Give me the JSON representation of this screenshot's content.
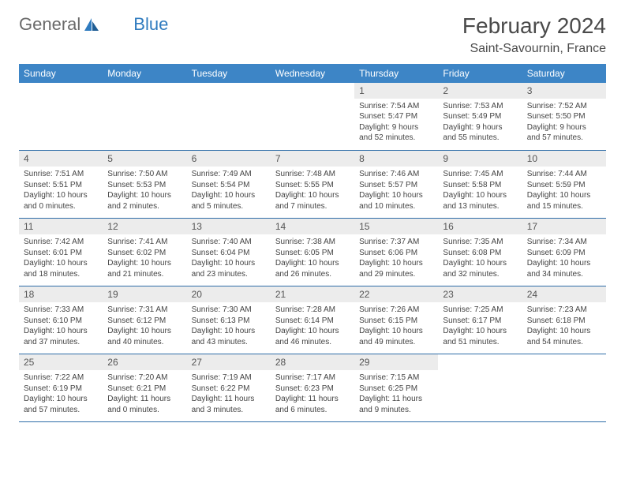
{
  "brand": {
    "part1": "General",
    "part2": "Blue"
  },
  "header": {
    "title": "February 2024",
    "location": "Saint-Savournin, France"
  },
  "columns": [
    "Sunday",
    "Monday",
    "Tuesday",
    "Wednesday",
    "Thursday",
    "Friday",
    "Saturday"
  ],
  "colors": {
    "header_bg": "#3d85c6",
    "header_text": "#ffffff",
    "row_border": "#2f6da8",
    "daynum_bg": "#ececec",
    "logo_gray": "#6a6a6a",
    "logo_blue": "#2f7bbf"
  },
  "weeks": [
    [
      null,
      null,
      null,
      null,
      {
        "n": "1",
        "sr": "7:54 AM",
        "ss": "5:47 PM",
        "dl": "9 hours and 52 minutes."
      },
      {
        "n": "2",
        "sr": "7:53 AM",
        "ss": "5:49 PM",
        "dl": "9 hours and 55 minutes."
      },
      {
        "n": "3",
        "sr": "7:52 AM",
        "ss": "5:50 PM",
        "dl": "9 hours and 57 minutes."
      }
    ],
    [
      {
        "n": "4",
        "sr": "7:51 AM",
        "ss": "5:51 PM",
        "dl": "10 hours and 0 minutes."
      },
      {
        "n": "5",
        "sr": "7:50 AM",
        "ss": "5:53 PM",
        "dl": "10 hours and 2 minutes."
      },
      {
        "n": "6",
        "sr": "7:49 AM",
        "ss": "5:54 PM",
        "dl": "10 hours and 5 minutes."
      },
      {
        "n": "7",
        "sr": "7:48 AM",
        "ss": "5:55 PM",
        "dl": "10 hours and 7 minutes."
      },
      {
        "n": "8",
        "sr": "7:46 AM",
        "ss": "5:57 PM",
        "dl": "10 hours and 10 minutes."
      },
      {
        "n": "9",
        "sr": "7:45 AM",
        "ss": "5:58 PM",
        "dl": "10 hours and 13 minutes."
      },
      {
        "n": "10",
        "sr": "7:44 AM",
        "ss": "5:59 PM",
        "dl": "10 hours and 15 minutes."
      }
    ],
    [
      {
        "n": "11",
        "sr": "7:42 AM",
        "ss": "6:01 PM",
        "dl": "10 hours and 18 minutes."
      },
      {
        "n": "12",
        "sr": "7:41 AM",
        "ss": "6:02 PM",
        "dl": "10 hours and 21 minutes."
      },
      {
        "n": "13",
        "sr": "7:40 AM",
        "ss": "6:04 PM",
        "dl": "10 hours and 23 minutes."
      },
      {
        "n": "14",
        "sr": "7:38 AM",
        "ss": "6:05 PM",
        "dl": "10 hours and 26 minutes."
      },
      {
        "n": "15",
        "sr": "7:37 AM",
        "ss": "6:06 PM",
        "dl": "10 hours and 29 minutes."
      },
      {
        "n": "16",
        "sr": "7:35 AM",
        "ss": "6:08 PM",
        "dl": "10 hours and 32 minutes."
      },
      {
        "n": "17",
        "sr": "7:34 AM",
        "ss": "6:09 PM",
        "dl": "10 hours and 34 minutes."
      }
    ],
    [
      {
        "n": "18",
        "sr": "7:33 AM",
        "ss": "6:10 PM",
        "dl": "10 hours and 37 minutes."
      },
      {
        "n": "19",
        "sr": "7:31 AM",
        "ss": "6:12 PM",
        "dl": "10 hours and 40 minutes."
      },
      {
        "n": "20",
        "sr": "7:30 AM",
        "ss": "6:13 PM",
        "dl": "10 hours and 43 minutes."
      },
      {
        "n": "21",
        "sr": "7:28 AM",
        "ss": "6:14 PM",
        "dl": "10 hours and 46 minutes."
      },
      {
        "n": "22",
        "sr": "7:26 AM",
        "ss": "6:15 PM",
        "dl": "10 hours and 49 minutes."
      },
      {
        "n": "23",
        "sr": "7:25 AM",
        "ss": "6:17 PM",
        "dl": "10 hours and 51 minutes."
      },
      {
        "n": "24",
        "sr": "7:23 AM",
        "ss": "6:18 PM",
        "dl": "10 hours and 54 minutes."
      }
    ],
    [
      {
        "n": "25",
        "sr": "7:22 AM",
        "ss": "6:19 PM",
        "dl": "10 hours and 57 minutes."
      },
      {
        "n": "26",
        "sr": "7:20 AM",
        "ss": "6:21 PM",
        "dl": "11 hours and 0 minutes."
      },
      {
        "n": "27",
        "sr": "7:19 AM",
        "ss": "6:22 PM",
        "dl": "11 hours and 3 minutes."
      },
      {
        "n": "28",
        "sr": "7:17 AM",
        "ss": "6:23 PM",
        "dl": "11 hours and 6 minutes."
      },
      {
        "n": "29",
        "sr": "7:15 AM",
        "ss": "6:25 PM",
        "dl": "11 hours and 9 minutes."
      },
      null,
      null
    ]
  ],
  "labels": {
    "sunrise": "Sunrise: ",
    "sunset": "Sunset: ",
    "daylight": "Daylight: "
  }
}
